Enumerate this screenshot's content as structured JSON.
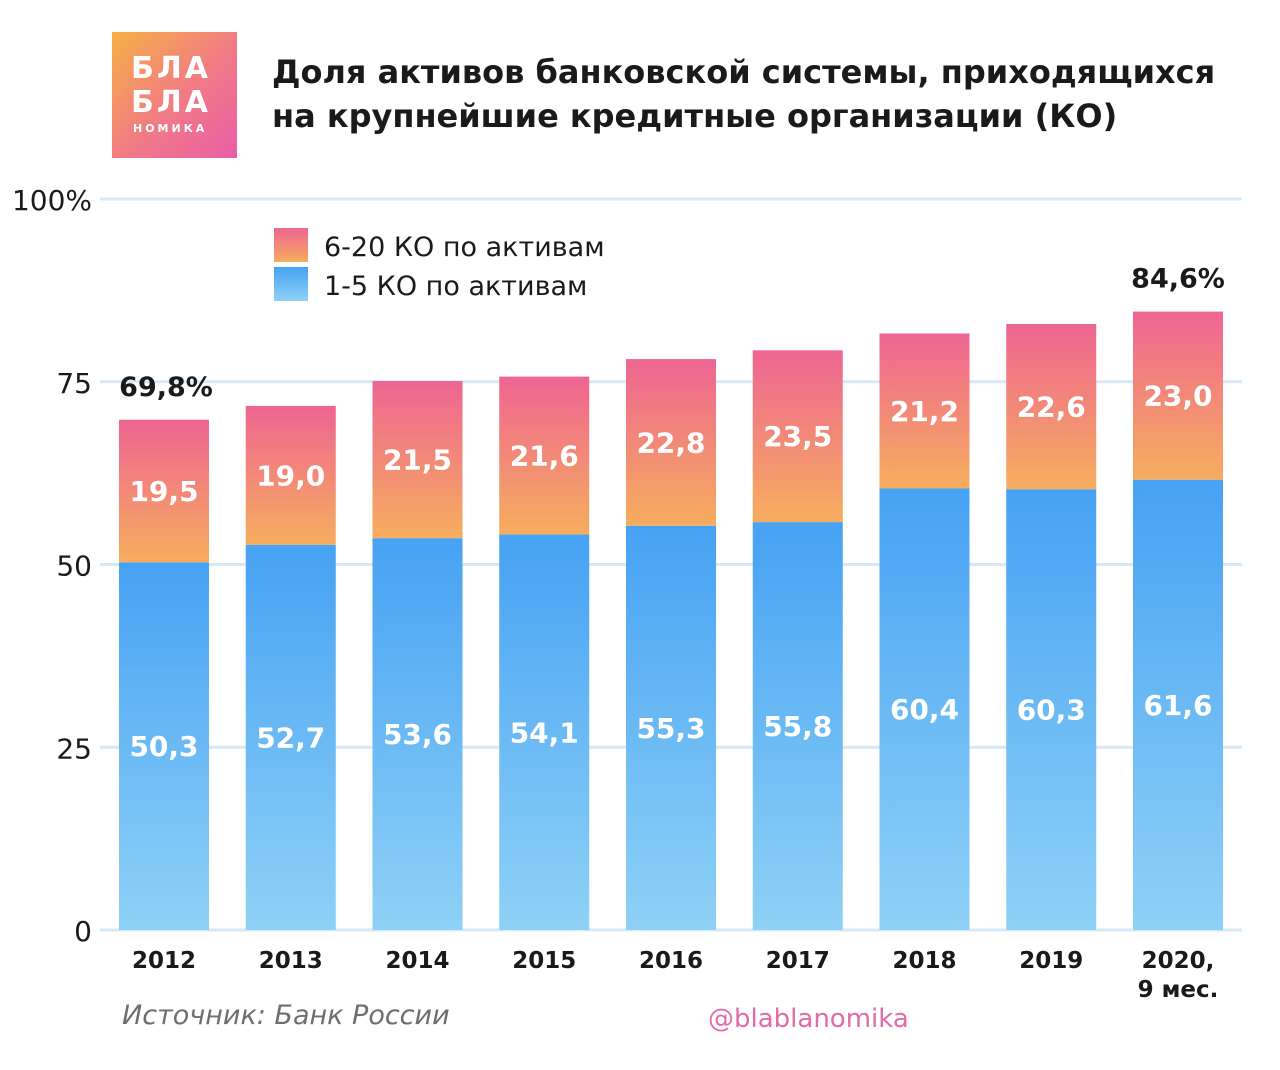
{
  "brand": {
    "logo_lines": [
      "БЛА",
      "БЛА",
      "НОМИКА"
    ],
    "handle": "@blablanomika"
  },
  "title_lines": [
    "Доля активов банковской системы, приходящихся",
    "на крупнейшие кредитные организации (КО)"
  ],
  "source": "Источник: Банк России",
  "colors": {
    "blue_top": "#46a2f3",
    "blue_bottom": "#8fd1f6",
    "pink_top": "#ee6592",
    "orange_bottom": "#f6ad5e",
    "grid": "#d7e9f7",
    "axis_text": "#1a1a1a",
    "logo_orange": "#f7b045",
    "logo_pink": "#ea5ea7"
  },
  "chart_data": {
    "type": "bar",
    "stacked": true,
    "categories": [
      "2012",
      "2013",
      "2014",
      "2015",
      "2016",
      "2017",
      "2018",
      "2019",
      "2020,\n9 мес."
    ],
    "series": [
      {
        "name": "1-5 КО по активам",
        "values": [
          50.3,
          52.7,
          53.6,
          54.1,
          55.3,
          55.8,
          60.4,
          60.3,
          61.6
        ],
        "labels": [
          "50,3",
          "52,7",
          "53,6",
          "54,1",
          "55,3",
          "55,8",
          "60,4",
          "60,3",
          "61,6"
        ]
      },
      {
        "name": "6-20 КО по активам",
        "values": [
          19.5,
          19.0,
          21.5,
          21.6,
          22.8,
          23.5,
          21.2,
          22.6,
          23.0
        ],
        "labels": [
          "19,5",
          "19,0",
          "21,5",
          "21,6",
          "22,8",
          "23,5",
          "21,2",
          "22,6",
          "23,0"
        ]
      }
    ],
    "totals_annotations": [
      {
        "category": "2012",
        "label": "69,8%"
      },
      {
        "category": "2020,\n9 мес.",
        "label": "84,6%"
      }
    ],
    "ylim": [
      0,
      100
    ],
    "yticks": [
      0,
      25,
      50,
      75,
      100
    ],
    "ytick_labels": [
      "0",
      "25",
      "50",
      "75",
      "100%"
    ],
    "grid": true,
    "legend_position": "top-left",
    "legend_order": [
      "6-20 КО по активам",
      "1-5 КО по активам"
    ]
  }
}
